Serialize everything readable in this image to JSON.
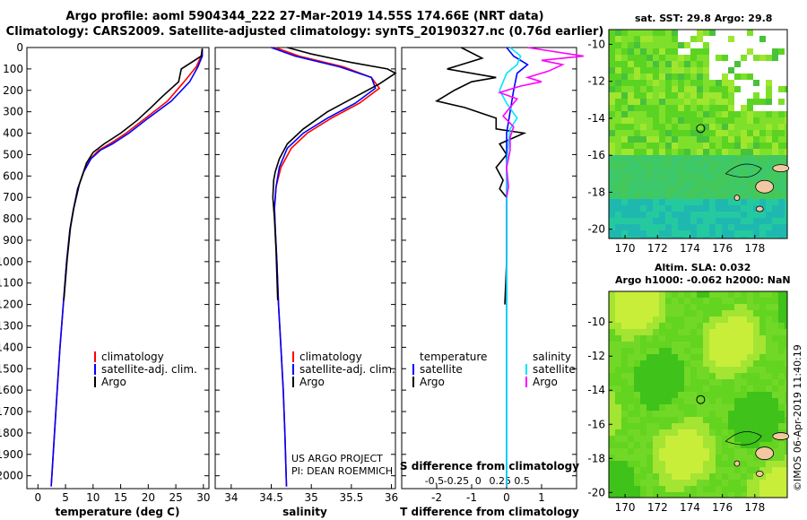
{
  "title": {
    "line1": "Argo profile: aoml 5904344_222 27-Mar-2019 14.55S 174.66E (NRT data)",
    "line2": "Climatology: CARS2009. Satellite-adjusted climatology: synTS_20190327.nc (0.76d earlier)"
  },
  "depth_ticks": [
    "0",
    "100",
    "200",
    "300",
    "400",
    "500",
    "600",
    "700",
    "800",
    "900",
    "1000",
    "1100",
    "1200",
    "1300",
    "1400",
    "1500",
    "1600",
    "1700",
    "1800",
    "1900",
    "2000"
  ],
  "colors": {
    "climatology": "#ff0000",
    "satellite": "#0000ff",
    "argo": "#000000",
    "salinity_satellite": "#00e5ff",
    "salinity_argo": "#ff00ff"
  },
  "chart_data": [
    {
      "type": "line",
      "xlabel": "temperature (deg C)",
      "ylabel": "",
      "xlim": [
        -2,
        31
      ],
      "ylim": [
        2060,
        0
      ],
      "ticks": [
        0,
        5,
        10,
        15,
        20,
        25,
        30
      ],
      "tick_labels": [
        "0",
        "5",
        "10",
        "15",
        "20",
        "25",
        "30"
      ],
      "legend": [
        "climatology",
        "satellite-adj. clim.",
        "Argo"
      ],
      "series": [
        {
          "name": "climatology",
          "color": "#ff0000",
          "points": [
            [
              29.8,
              5
            ],
            [
              29.6,
              40
            ],
            [
              28.7,
              90
            ],
            [
              26.5,
              160
            ],
            [
              23.5,
              250
            ],
            [
              19.5,
              330
            ],
            [
              16,
              400
            ],
            [
              13,
              450
            ],
            [
              11,
              480
            ],
            [
              9.5,
              520
            ],
            [
              8.3,
              580
            ],
            [
              7.2,
              660
            ],
            [
              6.4,
              760
            ],
            [
              5.8,
              850
            ],
            [
              5.2,
              1000
            ],
            [
              4.6,
              1200
            ],
            [
              4.0,
              1400
            ],
            [
              3.5,
              1600
            ],
            [
              3.0,
              1800
            ],
            [
              2.4,
              2050
            ]
          ]
        },
        {
          "name": "satellite-adj. clim.",
          "color": "#0000ff",
          "points": [
            [
              29.8,
              5
            ],
            [
              29.8,
              40
            ],
            [
              29.0,
              90
            ],
            [
              27.5,
              160
            ],
            [
              24.2,
              250
            ],
            [
              20.0,
              330
            ],
            [
              16.5,
              400
            ],
            [
              13.5,
              450
            ],
            [
              11.3,
              480
            ],
            [
              9.6,
              520
            ],
            [
              8.3,
              580
            ],
            [
              7.2,
              660
            ],
            [
              6.4,
              760
            ],
            [
              5.8,
              850
            ],
            [
              5.2,
              1000
            ],
            [
              4.6,
              1200
            ],
            [
              4.0,
              1400
            ],
            [
              3.5,
              1600
            ],
            [
              3.0,
              1800
            ],
            [
              2.4,
              2050
            ]
          ]
        },
        {
          "name": "Argo",
          "color": "#000000",
          "points": [
            [
              29.8,
              5
            ],
            [
              29.6,
              40
            ],
            [
              26.0,
              100
            ],
            [
              25.5,
              160
            ],
            [
              22.5,
              230
            ],
            [
              20.5,
              280
            ],
            [
              18.0,
              340
            ],
            [
              15.0,
              400
            ],
            [
              12.0,
              450
            ],
            [
              10.0,
              490
            ],
            [
              8.8,
              540
            ],
            [
              7.5,
              640
            ],
            [
              6.5,
              750
            ],
            [
              5.9,
              840
            ],
            [
              5.3,
              990
            ],
            [
              4.7,
              1180
            ]
          ]
        }
      ]
    },
    {
      "type": "line",
      "xlabel": "salinity",
      "xlim": [
        33.8,
        36.05
      ],
      "ylim": [
        2060,
        0
      ],
      "ticks": [
        34,
        34.5,
        35,
        35.5,
        36
      ],
      "tick_labels": [
        "34",
        "34.5",
        "35",
        "35.5",
        "36"
      ],
      "legend": [
        "climatology",
        "satellite-adj. clim.",
        "Argo"
      ],
      "credits": [
        "US ARGO PROJECT",
        "PI: DEAN ROEMMICH"
      ],
      "series": [
        {
          "name": "climatology",
          "color": "#ff0000",
          "points": [
            [
              34.55,
              0
            ],
            [
              34.85,
              40
            ],
            [
              35.4,
              90
            ],
            [
              35.75,
              140
            ],
            [
              35.85,
              190
            ],
            [
              35.6,
              260
            ],
            [
              35.25,
              330
            ],
            [
              34.95,
              400
            ],
            [
              34.75,
              470
            ],
            [
              34.62,
              560
            ],
            [
              34.56,
              650
            ],
            [
              34.54,
              750
            ],
            [
              34.55,
              850
            ],
            [
              34.57,
              1000
            ],
            [
              34.59,
              1200
            ],
            [
              34.62,
              1400
            ],
            [
              34.65,
              1600
            ],
            [
              34.67,
              1800
            ],
            [
              34.69,
              2050
            ]
          ]
        },
        {
          "name": "satellite-adj. clim.",
          "color": "#0000ff",
          "points": [
            [
              34.5,
              0
            ],
            [
              34.8,
              40
            ],
            [
              35.35,
              90
            ],
            [
              35.75,
              140
            ],
            [
              35.8,
              190
            ],
            [
              35.55,
              260
            ],
            [
              35.2,
              330
            ],
            [
              34.9,
              400
            ],
            [
              34.7,
              470
            ],
            [
              34.6,
              560
            ],
            [
              34.56,
              650
            ],
            [
              34.54,
              750
            ],
            [
              34.55,
              850
            ],
            [
              34.57,
              1000
            ],
            [
              34.59,
              1200
            ],
            [
              34.62,
              1400
            ],
            [
              34.65,
              1600
            ],
            [
              34.67,
              1800
            ],
            [
              34.69,
              2050
            ]
          ]
        },
        {
          "name": "Argo",
          "color": "#000000",
          "points": [
            [
              34.7,
              0
            ],
            [
              35.0,
              30
            ],
            [
              35.5,
              70
            ],
            [
              35.95,
              100
            ],
            [
              36.05,
              120
            ],
            [
              35.85,
              170
            ],
            [
              35.55,
              230
            ],
            [
              35.2,
              300
            ],
            [
              34.9,
              380
            ],
            [
              34.7,
              450
            ],
            [
              34.6,
              520
            ],
            [
              34.55,
              580
            ],
            [
              34.53,
              620
            ],
            [
              34.52,
              700
            ],
            [
              34.54,
              800
            ],
            [
              34.56,
              950
            ],
            [
              34.58,
              1180
            ]
          ]
        }
      ]
    },
    {
      "type": "line",
      "xlabel": "T difference from climatology",
      "xlabel_top": "S difference from climatology",
      "xlim": [
        -3.0,
        2.0
      ],
      "ylim": [
        2060,
        0
      ],
      "ticks": [
        -2,
        -1,
        0,
        1
      ],
      "tick_labels": [
        "-2",
        "-1",
        "0",
        "1"
      ],
      "top_ticks": [
        -0.5,
        -0.25,
        0,
        0.25,
        0.5
      ],
      "top_tick_labels": [
        "-0.5",
        "-0.25",
        "0",
        "0.25",
        "0.5"
      ],
      "legend_left_title": "temperature",
      "legend_right_title": "salinity",
      "legend_left": [
        "satellite",
        "Argo"
      ],
      "legend_right": [
        "satellite",
        "Argo"
      ],
      "series": [
        {
          "name": "temperature Argo",
          "color": "#000000",
          "points": [
            [
              -1.3,
              0
            ],
            [
              -0.7,
              50
            ],
            [
              -1.7,
              100
            ],
            [
              -0.3,
              140
            ],
            [
              -1.0,
              160
            ],
            [
              -1.5,
              200
            ],
            [
              -2.0,
              250
            ],
            [
              -1.2,
              280
            ],
            [
              -0.3,
              330
            ],
            [
              -0.3,
              380
            ],
            [
              0.5,
              400
            ],
            [
              -0.2,
              450
            ],
            [
              0.0,
              500
            ],
            [
              -0.3,
              560
            ],
            [
              -0.1,
              620
            ],
            [
              -0.2,
              660
            ],
            [
              0.0,
              700
            ],
            [
              0.0,
              800
            ],
            [
              0.0,
              1000
            ],
            [
              -0.05,
              1200
            ]
          ]
        },
        {
          "name": "temperature satellite",
          "color": "#0000ff",
          "points": [
            [
              0.0,
              0
            ],
            [
              0.2,
              40
            ],
            [
              0.6,
              80
            ],
            [
              0.3,
              120
            ],
            [
              0.2,
              200
            ],
            [
              0.1,
              300
            ],
            [
              0.0,
              400
            ],
            [
              0.0,
              600
            ],
            [
              0.0,
              800
            ],
            [
              0.0,
              1000
            ],
            [
              0.0,
              1400
            ],
            [
              0.0,
              2050
            ]
          ]
        },
        {
          "name": "salinity satellite",
          "color": "#00e5ff",
          "points": [
            [
              0.1,
              0
            ],
            [
              0.4,
              40
            ],
            [
              0.3,
              80
            ],
            [
              0.0,
              120
            ],
            [
              -0.2,
              200
            ],
            [
              0.0,
              260
            ],
            [
              0.3,
              330
            ],
            [
              0.1,
              380
            ],
            [
              0.05,
              450
            ],
            [
              0.0,
              550
            ],
            [
              0.0,
              700
            ],
            [
              0.0,
              800
            ],
            [
              0.0,
              1000
            ],
            [
              0.0,
              1400
            ],
            [
              0.0,
              2050
            ]
          ]
        },
        {
          "name": "salinity Argo",
          "color": "#ff00ff",
          "points": [
            [
              0.6,
              0
            ],
            [
              2.2,
              40
            ],
            [
              1.0,
              60
            ],
            [
              1.6,
              80
            ],
            [
              1.2,
              110
            ],
            [
              0.6,
              140
            ],
            [
              1.0,
              160
            ],
            [
              0.4,
              180
            ],
            [
              -0.2,
              210
            ],
            [
              0.3,
              240
            ],
            [
              0.1,
              280
            ],
            [
              -0.1,
              320
            ],
            [
              0.2,
              370
            ],
            [
              0.1,
              420
            ],
            [
              0.1,
              480
            ],
            [
              0.0,
              560
            ],
            [
              0.05,
              650
            ],
            [
              0.0,
              700
            ]
          ]
        }
      ]
    }
  ],
  "maps": [
    {
      "label": "sat. SST: 29.8 Argo: 29.8",
      "x_ticks": [
        "170",
        "172",
        "174",
        "176",
        "178"
      ],
      "y_ticks": [
        "-10",
        "-12",
        "-14",
        "-16",
        "-18",
        "-20"
      ],
      "x_range": [
        169,
        180
      ],
      "y_range": [
        -20.5,
        -9.2
      ],
      "marker": [
        174.66,
        -14.55
      ]
    },
    {
      "label_line1": "Altim. SLA: 0.032",
      "label_line2": "Argo h1000: -0.062 h2000: NaN",
      "x_ticks": [
        "170",
        "172",
        "174",
        "176",
        "178"
      ],
      "y_ticks": [
        "-10",
        "-12",
        "-14",
        "-16",
        "-18",
        "-20"
      ],
      "x_range": [
        169,
        180
      ],
      "y_range": [
        -20.3,
        -8.2
      ],
      "marker": [
        174.66,
        -14.55
      ]
    }
  ],
  "stamp": "©IMOS 06-Apr-2019 11:40:19"
}
